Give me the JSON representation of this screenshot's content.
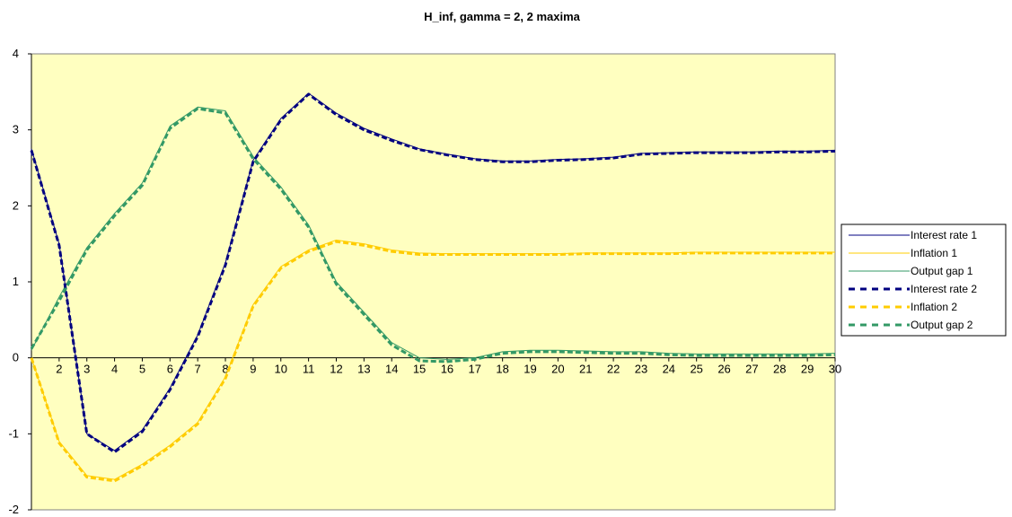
{
  "chart_data": {
    "type": "line",
    "title": "H_inf, gamma = 2, 2 maxima",
    "xlabel": "",
    "ylabel": "",
    "x_tick_labels": [
      "2",
      "3",
      "4",
      "5",
      "6",
      "7",
      "8",
      "9",
      "10",
      "11",
      "12",
      "13",
      "14",
      "15",
      "16",
      "17",
      "18",
      "19",
      "20",
      "21",
      "22",
      "23",
      "24",
      "25",
      "26",
      "27",
      "28",
      "29",
      "30"
    ],
    "xlim": [
      1,
      30
    ],
    "ylim": [
      -2,
      4
    ],
    "y_ticks": [
      -2,
      -1,
      0,
      1,
      2,
      3,
      4
    ],
    "grid": false,
    "legend_position": "right",
    "plot_background": "#ffffc0",
    "x": [
      1,
      2,
      3,
      4,
      5,
      6,
      7,
      8,
      9,
      10,
      11,
      12,
      13,
      14,
      15,
      16,
      17,
      18,
      19,
      20,
      21,
      22,
      23,
      24,
      25,
      26,
      27,
      28,
      29,
      30
    ],
    "series": [
      {
        "name": "Interest rate 1",
        "color": "#000080",
        "style": "solid",
        "values": [
          2.75,
          1.5,
          -1.0,
          -1.22,
          -0.95,
          -0.4,
          0.3,
          1.25,
          2.6,
          3.15,
          3.48,
          3.22,
          3.02,
          2.88,
          2.75,
          2.68,
          2.62,
          2.59,
          2.59,
          2.61,
          2.62,
          2.64,
          2.69,
          2.7,
          2.71,
          2.71,
          2.71,
          2.72,
          2.72,
          2.73
        ]
      },
      {
        "name": "Inflation 1",
        "color": "#ffcc00",
        "style": "solid",
        "values": [
          0.0,
          -1.1,
          -1.55,
          -1.6,
          -1.4,
          -1.15,
          -0.85,
          -0.25,
          0.7,
          1.2,
          1.42,
          1.55,
          1.5,
          1.42,
          1.38,
          1.37,
          1.37,
          1.37,
          1.37,
          1.37,
          1.38,
          1.38,
          1.38,
          1.38,
          1.39,
          1.39,
          1.39,
          1.39,
          1.39,
          1.39
        ]
      },
      {
        "name": "Output gap 1",
        "color": "#339966",
        "style": "solid",
        "values": [
          0.1,
          0.8,
          1.45,
          1.9,
          2.3,
          3.05,
          3.3,
          3.25,
          2.65,
          2.25,
          1.75,
          1.0,
          0.6,
          0.2,
          0.0,
          -0.02,
          0.0,
          0.08,
          0.1,
          0.1,
          0.09,
          0.08,
          0.08,
          0.06,
          0.05,
          0.05,
          0.05,
          0.05,
          0.05,
          0.06
        ]
      },
      {
        "name": "Interest rate 2",
        "color": "#000080",
        "style": "dashed",
        "values": [
          2.73,
          1.48,
          -1.0,
          -1.24,
          -0.97,
          -0.42,
          0.28,
          1.22,
          2.58,
          3.13,
          3.47,
          3.2,
          3.0,
          2.86,
          2.74,
          2.67,
          2.61,
          2.58,
          2.58,
          2.6,
          2.61,
          2.63,
          2.68,
          2.69,
          2.7,
          2.7,
          2.7,
          2.71,
          2.71,
          2.72
        ]
      },
      {
        "name": "Inflation 2",
        "color": "#ffcc00",
        "style": "dashed",
        "values": [
          0.0,
          -1.12,
          -1.57,
          -1.62,
          -1.42,
          -1.17,
          -0.87,
          -0.27,
          0.68,
          1.18,
          1.4,
          1.53,
          1.48,
          1.4,
          1.36,
          1.36,
          1.36,
          1.36,
          1.36,
          1.36,
          1.37,
          1.37,
          1.37,
          1.37,
          1.38,
          1.38,
          1.38,
          1.38,
          1.38,
          1.38
        ]
      },
      {
        "name": "Output gap 2",
        "color": "#339966",
        "style": "dashed",
        "values": [
          0.12,
          0.75,
          1.42,
          1.87,
          2.27,
          3.02,
          3.28,
          3.22,
          2.62,
          2.22,
          1.72,
          0.97,
          0.57,
          0.17,
          -0.04,
          -0.05,
          -0.02,
          0.06,
          0.08,
          0.08,
          0.07,
          0.06,
          0.06,
          0.04,
          0.03,
          0.03,
          0.03,
          0.03,
          0.03,
          0.04
        ]
      }
    ]
  }
}
